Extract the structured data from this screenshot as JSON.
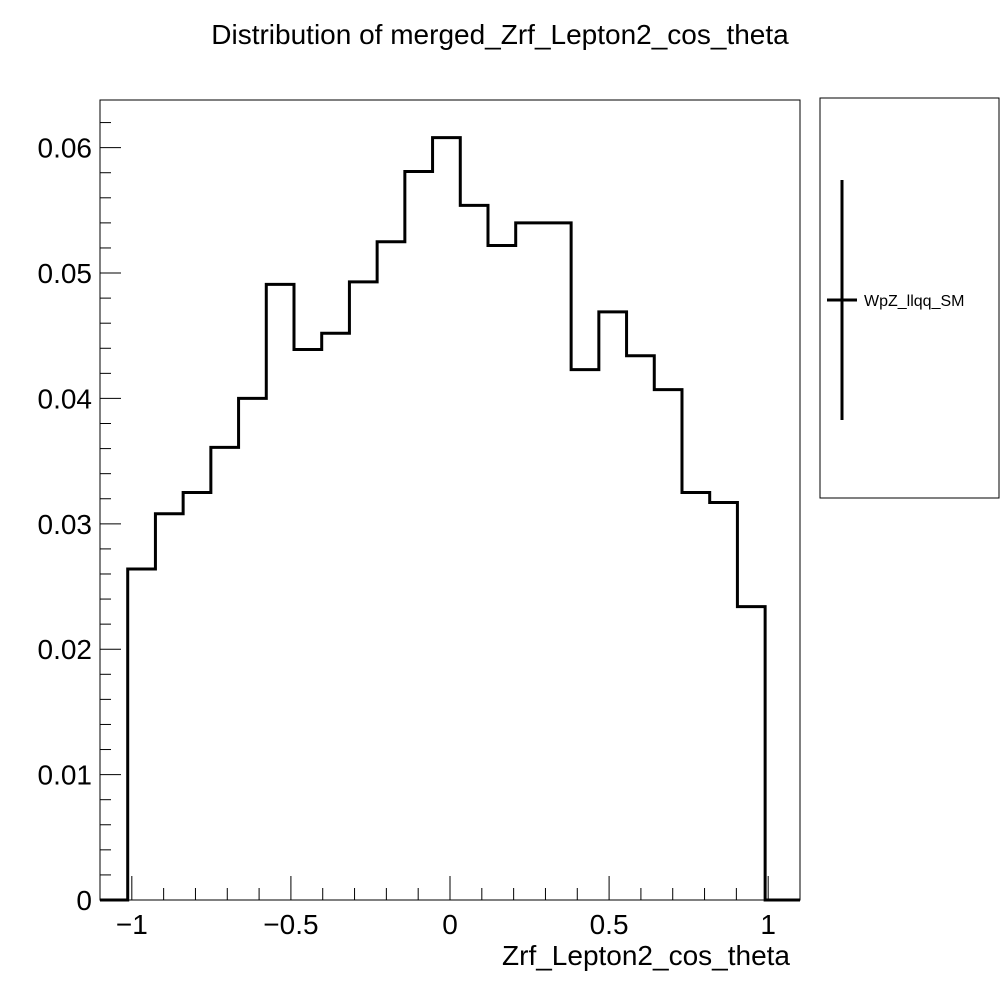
{
  "chart_data": {
    "type": "histogram-step",
    "title": "Distribution of merged_Zrf_Lepton2_cos_theta",
    "xlabel": "Zrf_Lepton2_cos_theta",
    "ylabel": "",
    "xlim": [
      -1.1,
      1.1
    ],
    "ylim": [
      0,
      0.0638
    ],
    "x_ticks": [
      {
        "value": -1,
        "label": "−1"
      },
      {
        "value": -0.5,
        "label": "−0.5"
      },
      {
        "value": 0,
        "label": "0"
      },
      {
        "value": 0.5,
        "label": "0.5"
      },
      {
        "value": 1,
        "label": "1"
      }
    ],
    "y_ticks": [
      {
        "value": 0,
        "label": "0"
      },
      {
        "value": 0.01,
        "label": "0.01"
      },
      {
        "value": 0.02,
        "label": "0.02"
      },
      {
        "value": 0.03,
        "label": "0.03"
      },
      {
        "value": 0.04,
        "label": "0.04"
      },
      {
        "value": 0.05,
        "label": "0.05"
      },
      {
        "value": 0.06,
        "label": "0.06"
      }
    ],
    "bin_edges": [
      -1.1,
      -1.0129,
      -0.9258,
      -0.8387,
      -0.7516,
      -0.6645,
      -0.5774,
      -0.4903,
      -0.4032,
      -0.3161,
      -0.229,
      -0.1419,
      -0.0548,
      0.0323,
      0.1194,
      0.2065,
      0.2936,
      0.3807,
      0.4678,
      0.5549,
      0.642,
      0.7291,
      0.8162,
      0.9033,
      0.9904,
      1.0775,
      1.1
    ],
    "series": [
      {
        "name": "WpZ_llqq_SM",
        "color": "#000000",
        "values": [
          0,
          0.0264,
          0.0308,
          0.0325,
          0.0361,
          0.04,
          0.0491,
          0.0439,
          0.0452,
          0.0493,
          0.0525,
          0.0581,
          0.0608,
          0.0554,
          0.0522,
          0.054,
          0.054,
          0.0423,
          0.0469,
          0.0434,
          0.0407,
          0.0325,
          0.0317,
          0.0234,
          0,
          0
        ]
      }
    ],
    "grid": false,
    "legend": {
      "position": "right-outside",
      "entries": [
        "WpZ_llqq_SM"
      ]
    }
  }
}
